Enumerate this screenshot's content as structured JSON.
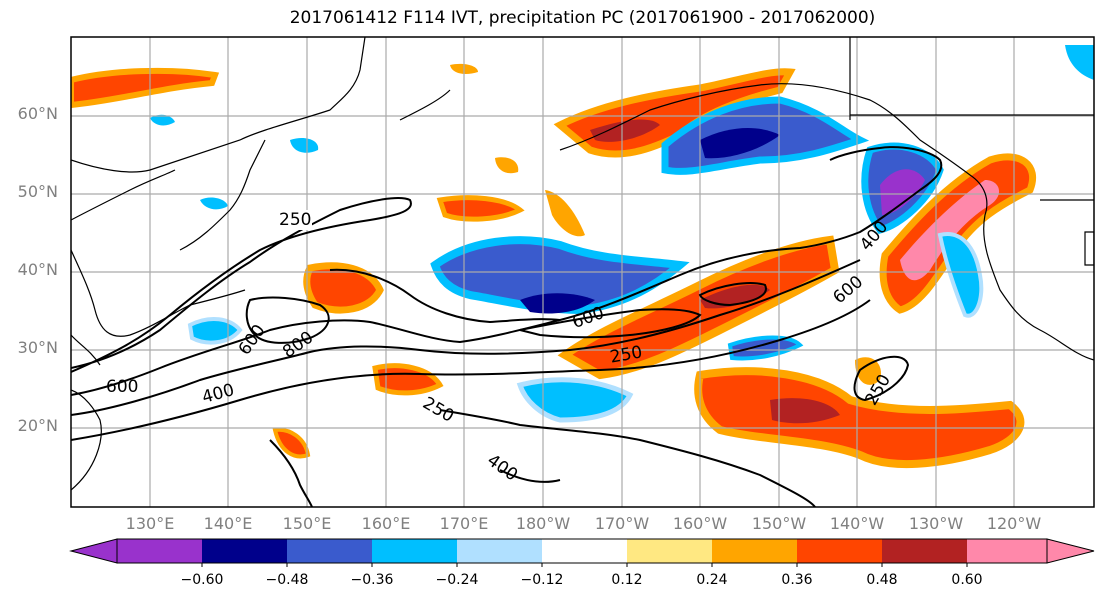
{
  "title": "2017061412 F114 IVT, precipitation PC (2017061900 - 2017062000)",
  "lat_labels": [
    "60°N",
    "50°N",
    "40°N",
    "30°N",
    "20°N"
  ],
  "lon_labels": [
    "130°E",
    "140°E",
    "150°E",
    "160°E",
    "170°E",
    "180°W",
    "170°W",
    "160°W",
    "150°W",
    "140°W",
    "130°W",
    "120°W"
  ],
  "contour_labels": [
    "250",
    "600",
    "800",
    "600",
    "400",
    "250",
    "600",
    "250",
    "400",
    "600",
    "400",
    "250"
  ],
  "colorbar": {
    "ticks": [
      "−0.60",
      "−0.48",
      "−0.36",
      "−0.24",
      "−0.12",
      "0.12",
      "0.24",
      "0.36",
      "0.48",
      "0.60"
    ],
    "colors": [
      "#9932cc",
      "#00008b",
      "#3a5bcd",
      "#00bfff",
      "#b0e0ff",
      "#ffffff",
      "#ffe882",
      "#ffa500",
      "#ff4500",
      "#b22222",
      "#ff88aa"
    ]
  }
}
